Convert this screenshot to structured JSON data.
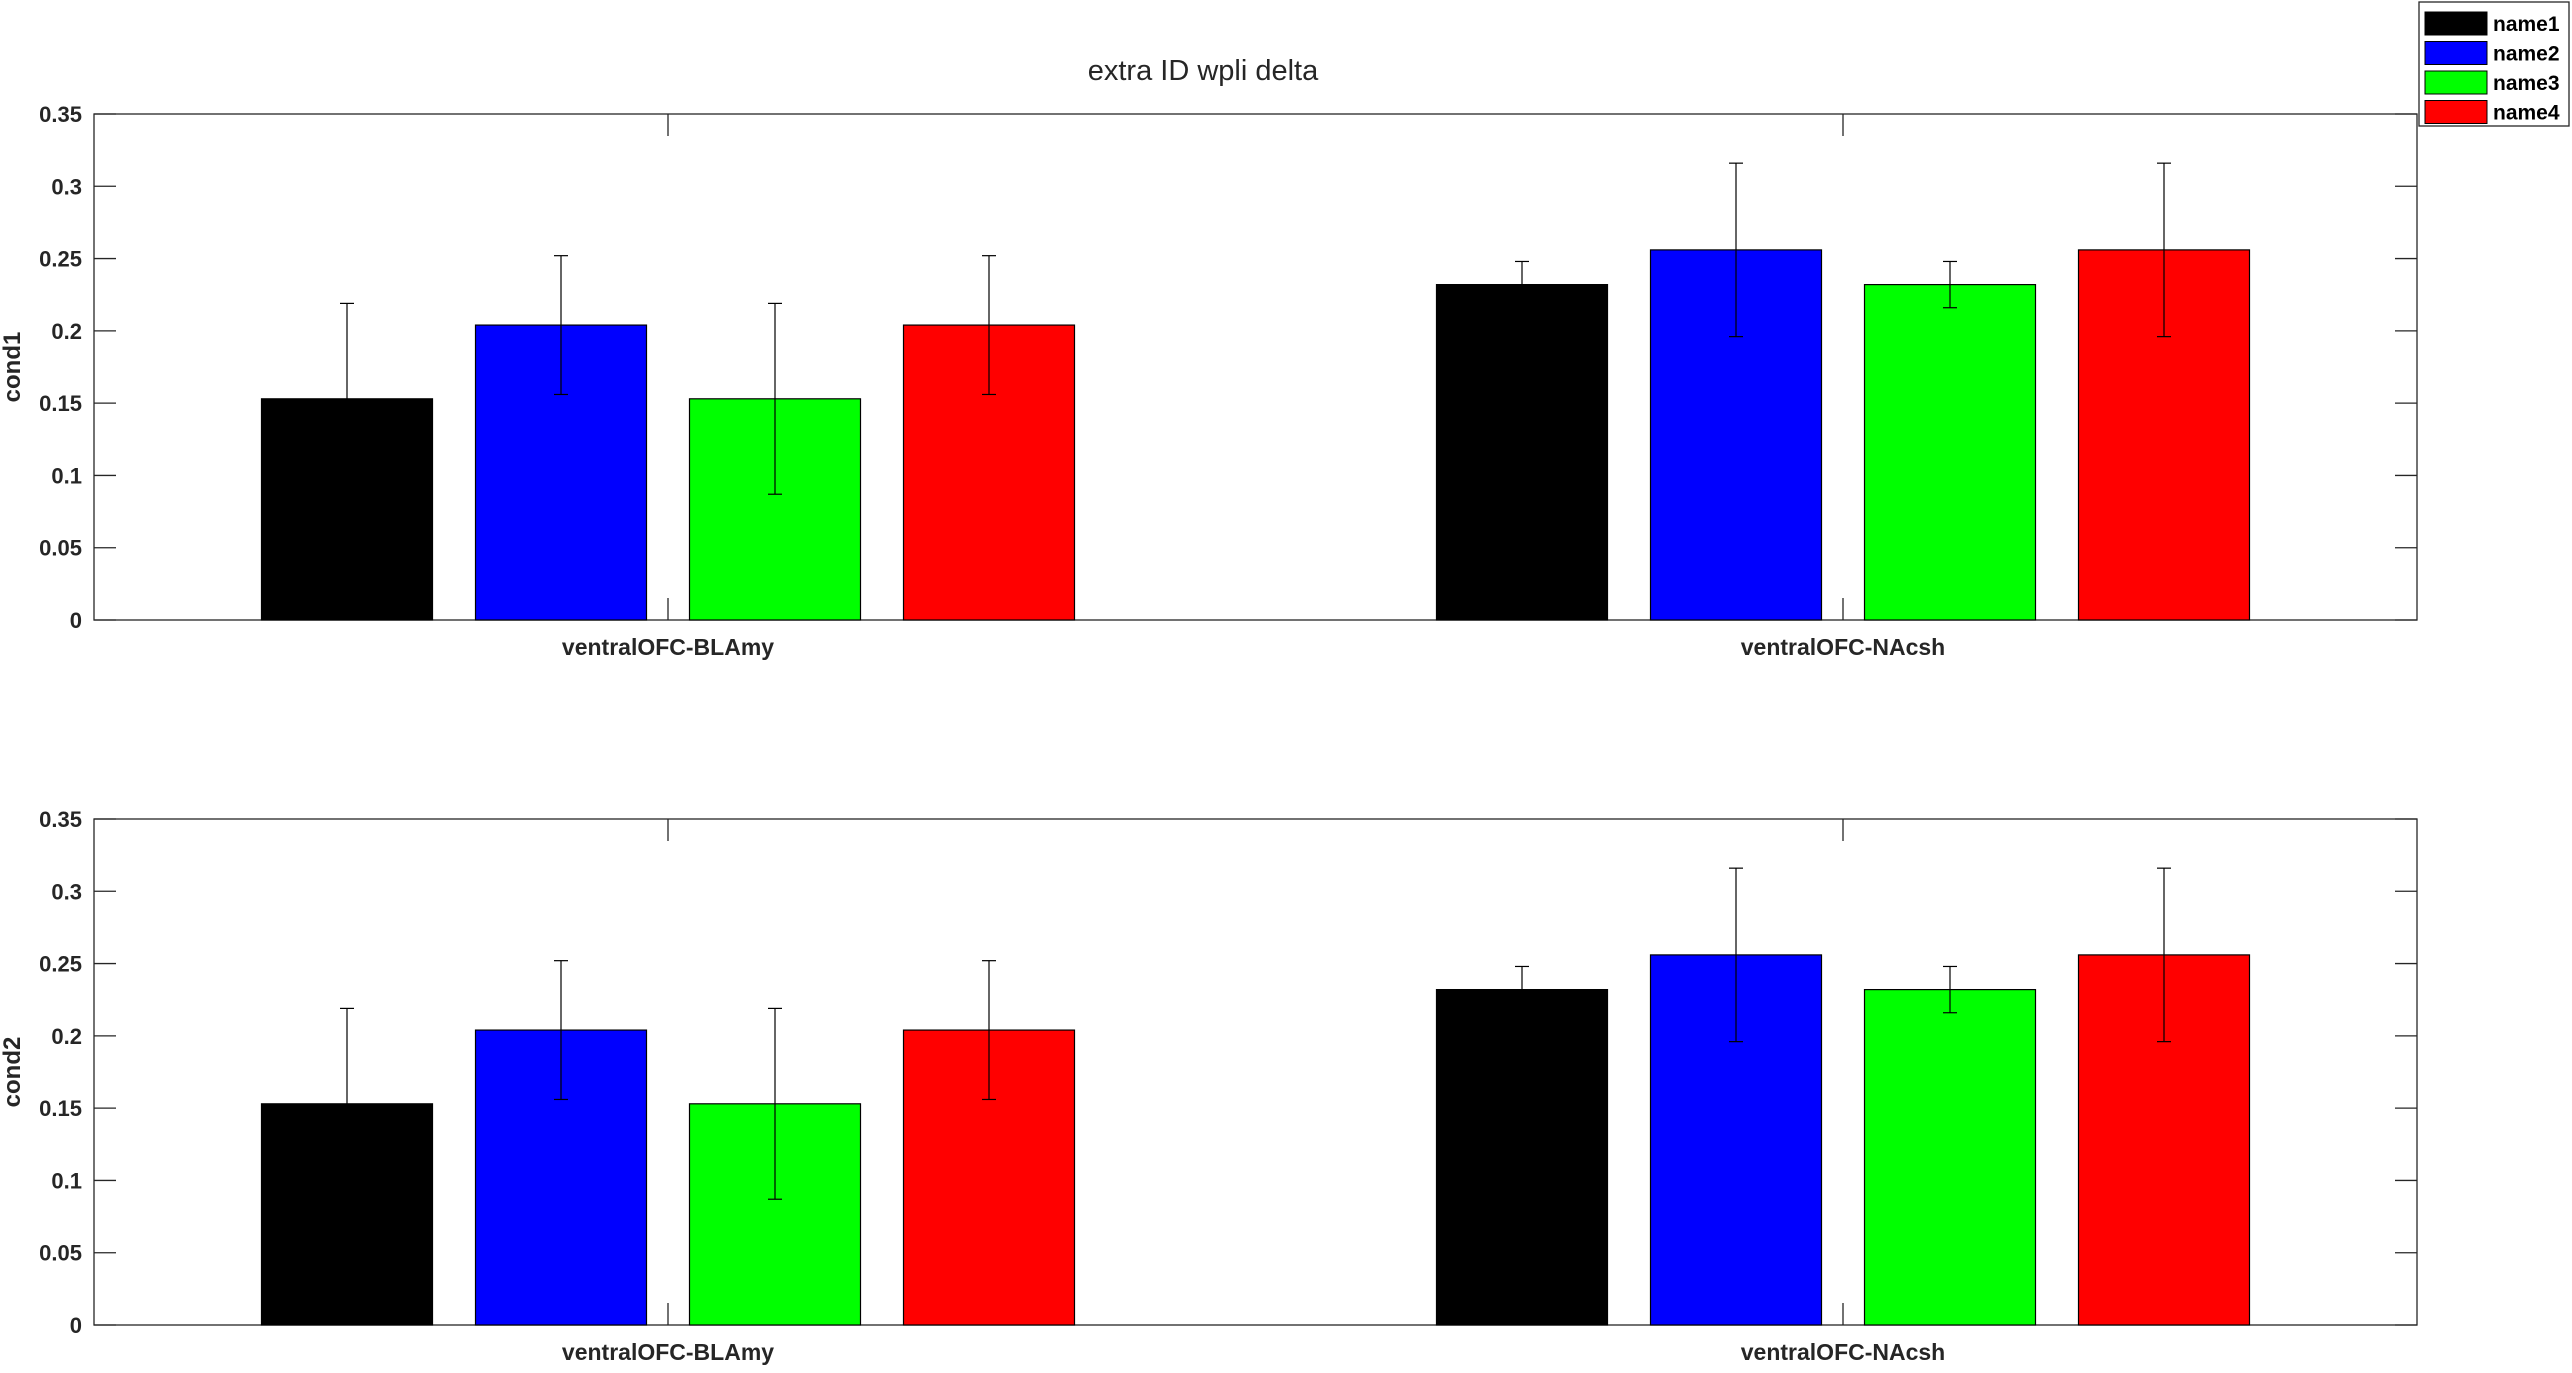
{
  "figure": {
    "title": "extra ID wpli delta"
  },
  "legend": {
    "entries": [
      {
        "label": "name1",
        "color": "#000000"
      },
      {
        "label": "name2",
        "color": "#0000ff"
      },
      {
        "label": "name3",
        "color": "#00ff00"
      },
      {
        "label": "name4",
        "color": "#ff0000"
      }
    ]
  },
  "chart_data": [
    {
      "type": "bar",
      "title": "extra ID wpli delta",
      "xlabel": "",
      "ylabel": "cond1",
      "ylim": [
        0,
        0.35
      ],
      "yticks": [
        0,
        0.05,
        0.1,
        0.15,
        0.2,
        0.25,
        0.3,
        0.35
      ],
      "ytick_labels": [
        "0",
        "0.05",
        "0.1",
        "0.15",
        "0.2",
        "0.25",
        "0.3",
        "0.35"
      ],
      "categories": [
        "ventralOFC-BLAmy",
        "ventralOFC-NAcsh"
      ],
      "grid": false,
      "legend_position": "outside-top-right",
      "series": [
        {
          "name": "name1",
          "color": "#000000",
          "values": [
            0.153,
            0.232
          ],
          "error": [
            0.066,
            0.016
          ]
        },
        {
          "name": "name2",
          "color": "#0000ff",
          "values": [
            0.204,
            0.256
          ],
          "error": [
            0.048,
            0.06
          ]
        },
        {
          "name": "name3",
          "color": "#00ff00",
          "values": [
            0.153,
            0.232
          ],
          "error": [
            0.066,
            0.016
          ]
        },
        {
          "name": "name4",
          "color": "#ff0000",
          "values": [
            0.204,
            0.256
          ],
          "error": [
            0.048,
            0.06
          ]
        }
      ]
    },
    {
      "type": "bar",
      "title": "",
      "xlabel": "",
      "ylabel": "cond2",
      "ylim": [
        0,
        0.35
      ],
      "yticks": [
        0,
        0.05,
        0.1,
        0.15,
        0.2,
        0.25,
        0.3,
        0.35
      ],
      "ytick_labels": [
        "0",
        "0.05",
        "0.1",
        "0.15",
        "0.2",
        "0.25",
        "0.3",
        "0.35"
      ],
      "categories": [
        "ventralOFC-BLAmy",
        "ventralOFC-NAcsh"
      ],
      "grid": false,
      "legend_position": "outside-top-right",
      "series": [
        {
          "name": "name1",
          "color": "#000000",
          "values": [
            0.153,
            0.232
          ],
          "error": [
            0.066,
            0.016
          ]
        },
        {
          "name": "name2",
          "color": "#0000ff",
          "values": [
            0.204,
            0.256
          ],
          "error": [
            0.048,
            0.06
          ]
        },
        {
          "name": "name3",
          "color": "#00ff00",
          "values": [
            0.153,
            0.232
          ],
          "error": [
            0.066,
            0.016
          ]
        },
        {
          "name": "name4",
          "color": "#ff0000",
          "values": [
            0.204,
            0.256
          ],
          "error": [
            0.048,
            0.06
          ]
        }
      ]
    }
  ]
}
